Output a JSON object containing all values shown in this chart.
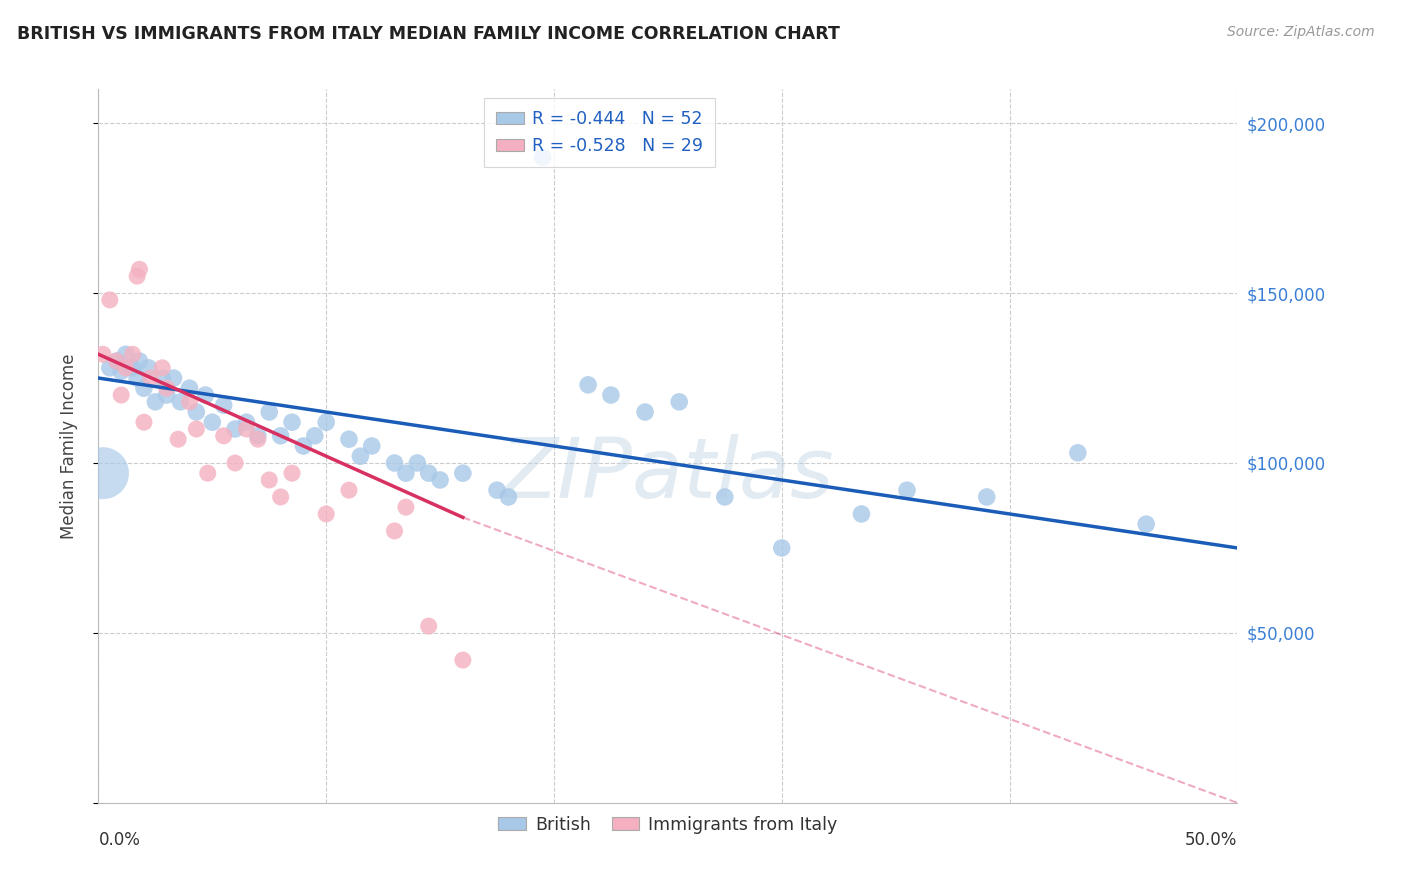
{
  "title": "BRITISH VS IMMIGRANTS FROM ITALY MEDIAN FAMILY INCOME CORRELATION CHART",
  "source": "Source: ZipAtlas.com",
  "ylabel": "Median Family Income",
  "xmin": 0.0,
  "xmax": 0.5,
  "ymin": 0,
  "ymax": 210000,
  "yticks": [
    0,
    50000,
    100000,
    150000,
    200000
  ],
  "ytick_labels": [
    "",
    "$50,000",
    "$100,000",
    "$150,000",
    "$200,000"
  ],
  "background_color": "#ffffff",
  "grid_color": "#cccccc",
  "watermark": "ZIPatlas",
  "blue_R": -0.444,
  "blue_N": 52,
  "pink_R": -0.528,
  "pink_N": 29,
  "blue_color": "#a8c8e8",
  "pink_color": "#f4b0c0",
  "blue_line_color": "#1a5cb8",
  "pink_line_color": "#d83060",
  "legend_label_blue": "British",
  "legend_label_pink": "Immigrants from Italy",
  "blue_line": [
    [
      0.0,
      125000
    ],
    [
      0.5,
      75000
    ]
  ],
  "pink_line_solid": [
    [
      0.0,
      132000
    ],
    [
      0.16,
      84000
    ]
  ],
  "pink_line_dash": [
    [
      0.16,
      84000
    ],
    [
      0.5,
      0
    ]
  ],
  "blue_points": [
    [
      0.005,
      128000
    ],
    [
      0.008,
      130000
    ],
    [
      0.01,
      127000
    ],
    [
      0.012,
      132000
    ],
    [
      0.015,
      128000
    ],
    [
      0.017,
      125000
    ],
    [
      0.018,
      130000
    ],
    [
      0.02,
      122000
    ],
    [
      0.022,
      128000
    ],
    [
      0.025,
      118000
    ],
    [
      0.028,
      125000
    ],
    [
      0.03,
      120000
    ],
    [
      0.033,
      125000
    ],
    [
      0.036,
      118000
    ],
    [
      0.04,
      122000
    ],
    [
      0.043,
      115000
    ],
    [
      0.047,
      120000
    ],
    [
      0.05,
      112000
    ],
    [
      0.055,
      117000
    ],
    [
      0.06,
      110000
    ],
    [
      0.065,
      112000
    ],
    [
      0.07,
      108000
    ],
    [
      0.075,
      115000
    ],
    [
      0.08,
      108000
    ],
    [
      0.085,
      112000
    ],
    [
      0.09,
      105000
    ],
    [
      0.095,
      108000
    ],
    [
      0.1,
      112000
    ],
    [
      0.11,
      107000
    ],
    [
      0.115,
      102000
    ],
    [
      0.12,
      105000
    ],
    [
      0.13,
      100000
    ],
    [
      0.135,
      97000
    ],
    [
      0.14,
      100000
    ],
    [
      0.145,
      97000
    ],
    [
      0.15,
      95000
    ],
    [
      0.16,
      97000
    ],
    [
      0.175,
      92000
    ],
    [
      0.18,
      90000
    ],
    [
      0.195,
      190000
    ],
    [
      0.215,
      123000
    ],
    [
      0.225,
      120000
    ],
    [
      0.24,
      115000
    ],
    [
      0.255,
      118000
    ],
    [
      0.275,
      90000
    ],
    [
      0.3,
      75000
    ],
    [
      0.335,
      85000
    ],
    [
      0.355,
      92000
    ],
    [
      0.39,
      90000
    ],
    [
      0.43,
      103000
    ],
    [
      0.46,
      82000
    ]
  ],
  "blue_large_point": [
    0.002,
    97000
  ],
  "pink_points": [
    [
      0.002,
      132000
    ],
    [
      0.005,
      148000
    ],
    [
      0.008,
      130000
    ],
    [
      0.01,
      120000
    ],
    [
      0.012,
      128000
    ],
    [
      0.015,
      132000
    ],
    [
      0.017,
      155000
    ],
    [
      0.018,
      157000
    ],
    [
      0.02,
      112000
    ],
    [
      0.023,
      125000
    ],
    [
      0.028,
      128000
    ],
    [
      0.03,
      122000
    ],
    [
      0.035,
      107000
    ],
    [
      0.04,
      118000
    ],
    [
      0.043,
      110000
    ],
    [
      0.048,
      97000
    ],
    [
      0.055,
      108000
    ],
    [
      0.06,
      100000
    ],
    [
      0.065,
      110000
    ],
    [
      0.07,
      107000
    ],
    [
      0.075,
      95000
    ],
    [
      0.08,
      90000
    ],
    [
      0.085,
      97000
    ],
    [
      0.1,
      85000
    ],
    [
      0.11,
      92000
    ],
    [
      0.13,
      80000
    ],
    [
      0.135,
      87000
    ],
    [
      0.145,
      52000
    ],
    [
      0.16,
      42000
    ]
  ]
}
